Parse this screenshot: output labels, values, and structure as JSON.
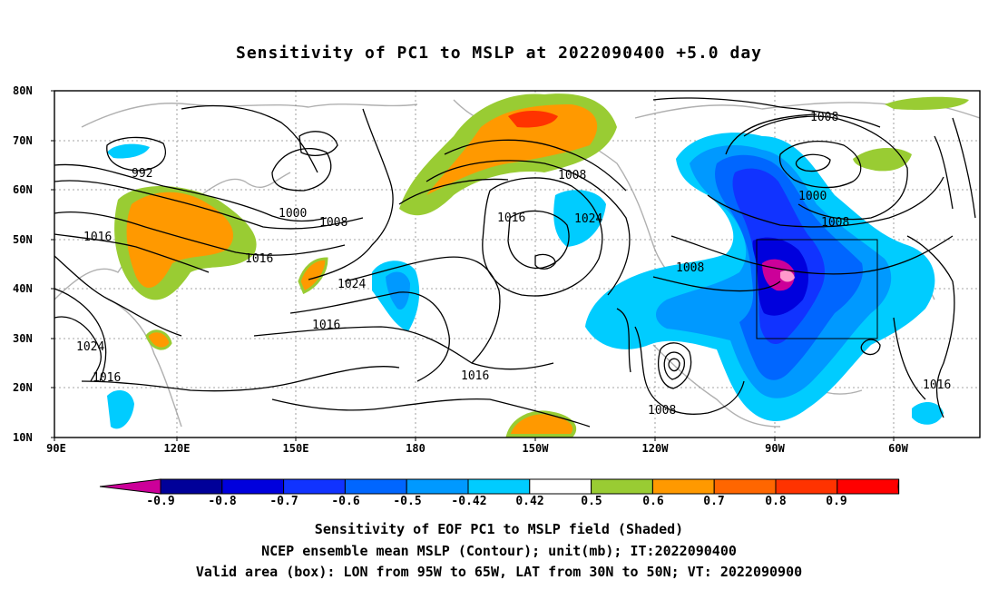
{
  "title": "Sensitivity of PC1 to MSLP at 2022090400 +5.0 day",
  "lat_labels": [
    "80N",
    "70N",
    "60N",
    "50N",
    "40N",
    "30N",
    "20N",
    "10N"
  ],
  "lon_labels": [
    "90E",
    "120E",
    "150E",
    "180",
    "150W",
    "120W",
    "90W",
    "60W"
  ],
  "colorbar": {
    "ticks": [
      "-0.9",
      "-0.8",
      "-0.7",
      "-0.6",
      "-0.5",
      "-0.42",
      "0.42",
      "0.5",
      "0.6",
      "0.7",
      "0.8",
      "0.9"
    ],
    "colors": [
      "#cc0099",
      "#000099",
      "#0000dd",
      "#1133ff",
      "#0066ff",
      "#0099ff",
      "#00ccff",
      "#ffffff",
      "#99cc33",
      "#ff9900",
      "#ff6600",
      "#ff3300",
      "#ff0000",
      "#ff99cc"
    ]
  },
  "contour_labels": [
    "992",
    "1000",
    "1008",
    "1016",
    "1024",
    "1016",
    "1024",
    "1016",
    "1008",
    "1016",
    "1024",
    "1008",
    "1016",
    "1008",
    "1000",
    "1008",
    "1008",
    "1016",
    "1016",
    "1024"
  ],
  "captions": [
    "Sensitivity of EOF PC1 to MSLP field (Shaded)",
    "NCEP ensemble mean MSLP (Contour); unit(mb); IT:2022090400",
    "Valid area (box): LON from 95W to 65W, LAT from 30N to 50N; VT: 2022090900"
  ]
}
